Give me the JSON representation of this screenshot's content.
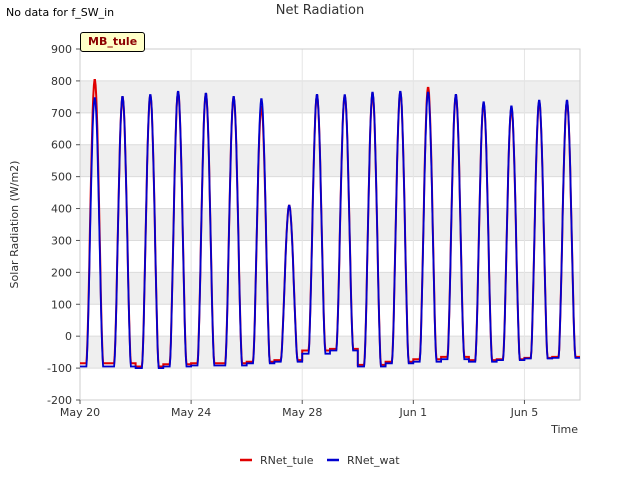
{
  "page": {
    "no_data_note": "No data for f_SW_in",
    "site_label": "MB_tule"
  },
  "chart_data": {
    "type": "line",
    "title": "Net Radiation",
    "xlabel": "Time",
    "ylabel": "Solar Radiation (W/m2)",
    "xlim": [
      "2024-05-20",
      "2024-06-07"
    ],
    "ylim": [
      -200,
      900
    ],
    "y_ticks": [
      -200,
      -100,
      0,
      100,
      200,
      300,
      400,
      500,
      600,
      700,
      800,
      900
    ],
    "x_ticks": [
      {
        "date": "2024-05-20",
        "label": "May 20"
      },
      {
        "date": "2024-05-24",
        "label": "May 24"
      },
      {
        "date": "2024-05-28",
        "label": "May 28"
      },
      {
        "date": "2024-06-01",
        "label": "Jun 1"
      },
      {
        "date": "2024-06-05",
        "label": "Jun 5"
      }
    ],
    "grid": true,
    "legend_position": "bottom",
    "series": [
      {
        "name": "RNet_tule",
        "color": "#e00000",
        "daily_peak_dates": [
          "2024-05-20",
          "2024-05-21",
          "2024-05-22",
          "2024-05-23",
          "2024-05-24",
          "2024-05-25",
          "2024-05-26",
          "2024-05-27",
          "2024-05-28",
          "2024-05-29",
          "2024-05-30",
          "2024-05-31",
          "2024-06-01",
          "2024-06-02",
          "2024-06-03",
          "2024-06-04",
          "2024-06-05",
          "2024-06-06"
        ],
        "daily_peak": [
          805,
          750,
          755,
          765,
          760,
          750,
          720,
          410,
          755,
          755,
          760,
          765,
          780,
          755,
          730,
          715,
          735,
          735
        ],
        "night_min": [
          -85,
          -85,
          -95,
          -88,
          -85,
          -85,
          -80,
          -75,
          -45,
          -40,
          -90,
          -80,
          -72,
          -65,
          -75,
          -72,
          -68,
          -65
        ]
      },
      {
        "name": "RNet_wat",
        "color": "#0000d0",
        "daily_peak_dates": [
          "2024-05-20",
          "2024-05-21",
          "2024-05-22",
          "2024-05-23",
          "2024-05-24",
          "2024-05-25",
          "2024-05-26",
          "2024-05-27",
          "2024-05-28",
          "2024-05-29",
          "2024-05-30",
          "2024-05-31",
          "2024-06-01",
          "2024-06-02",
          "2024-06-03",
          "2024-06-04",
          "2024-06-05",
          "2024-06-06"
        ],
        "daily_peak": [
          748,
          752,
          758,
          768,
          762,
          752,
          745,
          410,
          758,
          757,
          765,
          768,
          765,
          758,
          735,
          722,
          740,
          740
        ],
        "night_min": [
          -95,
          -95,
          -100,
          -95,
          -92,
          -92,
          -85,
          -80,
          -55,
          -45,
          -95,
          -85,
          -80,
          -72,
          -80,
          -75,
          -70,
          -68
        ]
      }
    ]
  }
}
